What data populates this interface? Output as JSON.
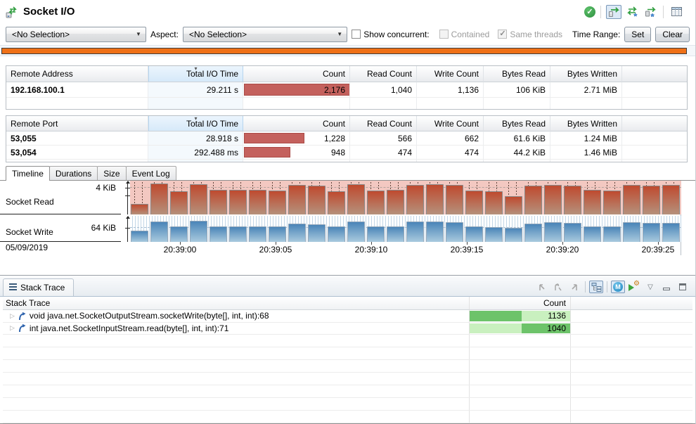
{
  "header": {
    "title": "Socket I/O",
    "icons": [
      "socket-io-icon",
      "check-circle-icon",
      "socket-connections-icon",
      "socket-connections-new-icon",
      "socket-connections-pinned-icon",
      "table-view-icon"
    ]
  },
  "filterbar": {
    "selection_dropdown_value": "<No Selection>",
    "aspect_label": "Aspect:",
    "aspect_dropdown_value": "<No Selection>",
    "show_concurrent_label": "Show concurrent:",
    "contained_label": "Contained",
    "same_threads_label": "Same threads",
    "time_range_label": "Time Range:",
    "set_button": "Set",
    "clear_button": "Clear"
  },
  "address_table": {
    "columns": [
      "Remote Address",
      "Total I/O Time",
      "Count",
      "Read Count",
      "Write Count",
      "Bytes Read",
      "Bytes Written"
    ],
    "sorted_column": "Total I/O Time",
    "rows": [
      {
        "remote_address": "192.168.100.1",
        "total_io_time": "29.211 s",
        "count": "2,176",
        "count_bar_pct": 100,
        "read_count": "1,040",
        "write_count": "1,136",
        "bytes_read": "106 KiB",
        "bytes_written": "2.71 MiB"
      }
    ]
  },
  "port_table": {
    "columns": [
      "Remote Port",
      "Total I/O Time",
      "Count",
      "Read Count",
      "Write Count",
      "Bytes Read",
      "Bytes Written"
    ],
    "sorted_column": "Total I/O Time",
    "rows": [
      {
        "remote_port": "53,055",
        "total_io_time": "28.918 s",
        "count": "1,228",
        "count_bar_pct": 57,
        "read_count": "566",
        "write_count": "662",
        "bytes_read": "61.6 KiB",
        "bytes_written": "1.24 MiB"
      },
      {
        "remote_port": "53,054",
        "total_io_time": "292.488 ms",
        "count": "948",
        "count_bar_pct": 44,
        "read_count": "474",
        "write_count": "474",
        "bytes_read": "44.2 KiB",
        "bytes_written": "1.46 MiB"
      }
    ]
  },
  "tabs": [
    {
      "label": "Timeline",
      "selected": true
    },
    {
      "label": "Durations",
      "selected": false
    },
    {
      "label": "Size",
      "selected": false
    },
    {
      "label": "Event Log",
      "selected": false
    }
  ],
  "timeline": {
    "read_label": "Socket Read",
    "write_label": "Socket Write",
    "read_axis_tick": "4 KiB",
    "write_axis_tick": "64 KiB",
    "date": "05/09/2019",
    "chart_data": {
      "type": "bar",
      "x_ticks": [
        "20:39:00",
        "20:39:05",
        "20:39:10",
        "20:39:15",
        "20:39:20",
        "20:39:25"
      ],
      "series": [
        {
          "name": "Socket Read",
          "axis_reference": "4 KiB",
          "values_norm": [
            0.33,
            0.95,
            0.72,
            0.93,
            0.75,
            0.76,
            0.75,
            0.74,
            0.92,
            0.9,
            0.72,
            0.94,
            0.74,
            0.76,
            0.91,
            0.93,
            0.91,
            0.74,
            0.72,
            0.56,
            0.9,
            0.92,
            0.9,
            0.75,
            0.73,
            0.91,
            0.9,
            0.92
          ]
        },
        {
          "name": "Socket Write",
          "axis_reference": "64 KiB",
          "values_norm": [
            0.46,
            0.84,
            0.64,
            0.86,
            0.62,
            0.63,
            0.64,
            0.62,
            0.75,
            0.71,
            0.62,
            0.84,
            0.63,
            0.64,
            0.82,
            0.84,
            0.81,
            0.63,
            0.61,
            0.56,
            0.75,
            0.79,
            0.76,
            0.64,
            0.62,
            0.79,
            0.76,
            0.78
          ]
        }
      ],
      "legend_position": "left",
      "grid": true
    }
  },
  "stack_trace": {
    "panel_title": "Stack Trace",
    "toolbar_icons": [
      "previous-marker-icon",
      "reset-marker-icon",
      "next-marker-icon",
      "tree-mode-icon",
      "methods-mode-icon",
      "profile-settings-icon",
      "dropdown-chevron-icon",
      "minimize-icon",
      "maximize-icon"
    ],
    "columns": [
      "Stack Trace",
      "Count"
    ],
    "rows": [
      {
        "frame": "void java.net.SocketOutputStream.socketWrite(byte[], int, int):68",
        "count": "1136",
        "bar": {
          "dark_left_pct": 0,
          "dark_width_pct": 52
        }
      },
      {
        "frame": "int java.net.SocketInputStream.read(byte[], int, int):71",
        "count": "1040",
        "bar": {
          "dark_left_pct": 52,
          "dark_width_pct": 48
        }
      }
    ]
  },
  "colors": {
    "accent_orange": "#ef7017",
    "table_bar_red": "#c4615d",
    "read_bar_top": "#bf4a2f",
    "write_bar_top": "#4a85b8",
    "count_green_light": "#c9f0bf",
    "count_green_dark": "#6dc36a",
    "sorted_header_blue": "#d6e9f9"
  }
}
